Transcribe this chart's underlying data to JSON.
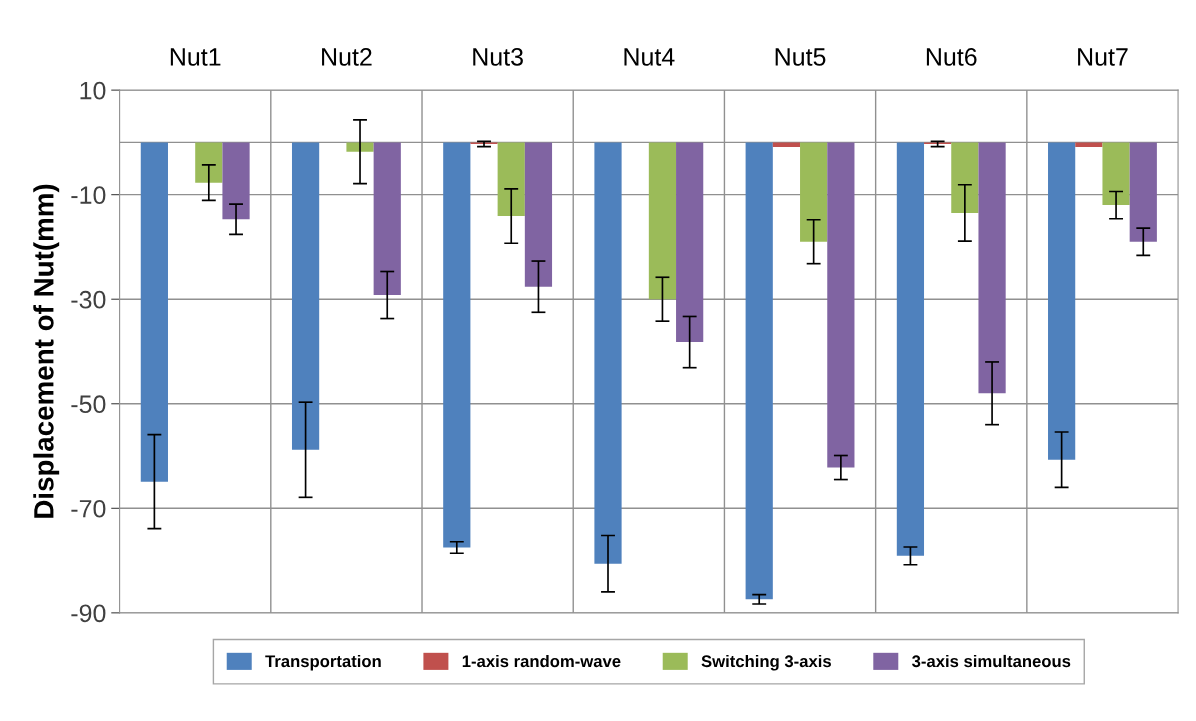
{
  "chart_data": {
    "type": "bar",
    "ylabel": "Displacement of Nut(mm)",
    "categories": [
      "Nut1",
      "Nut2",
      "Nut3",
      "Nut4",
      "Nut5",
      "Nut6",
      "Nut7"
    ],
    "series": [
      {
        "name": "Transportation",
        "color": "#4f81bd",
        "values": [
          -64.9,
          -58.8,
          -77.5,
          -80.6,
          -87.4,
          -79.1,
          -60.7
        ],
        "errors": [
          9,
          9.1,
          1.1,
          5.4,
          0.9,
          1.7,
          5.3
        ]
      },
      {
        "name": "1-axis random-wave",
        "color": "#c0504d",
        "values": [
          null,
          null,
          -0.3,
          null,
          -0.9,
          -0.3,
          -0.9
        ],
        "errors": [
          null,
          null,
          0.5,
          null,
          null,
          0.5,
          null
        ]
      },
      {
        "name": "Switching 3-axis",
        "color": "#9bbb59",
        "values": [
          -7.7,
          -1.8,
          -14.1,
          -30.0,
          -19.0,
          -13.5,
          -12.0
        ],
        "errors": [
          3.4,
          6.1,
          5.2,
          4.2,
          4.2,
          5.4,
          2.6
        ]
      },
      {
        "name": "3-axis simultaneous",
        "color": "#8064a2",
        "values": [
          -14.7,
          -29.2,
          -27.6,
          -38.2,
          -62.2,
          -48.0,
          -19.0
        ],
        "errors": [
          2.9,
          4.5,
          4.9,
          4.9,
          2.3,
          6.0,
          2.6
        ]
      }
    ],
    "ylim": [
      -90,
      10
    ],
    "yticks": [
      10,
      -10,
      -30,
      -50,
      -70,
      -90
    ],
    "grid": true,
    "legend": "bottom"
  }
}
